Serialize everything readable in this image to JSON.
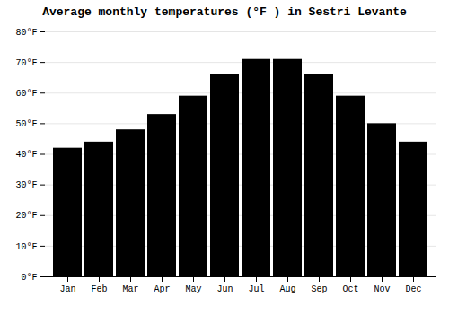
{
  "chart_data": {
    "type": "bar",
    "title": "Average monthly temperatures (°F ) in Sestri Levante",
    "categories": [
      "Jan",
      "Feb",
      "Mar",
      "Apr",
      "May",
      "Jun",
      "Jul",
      "Aug",
      "Sep",
      "Oct",
      "Nov",
      "Dec"
    ],
    "values": [
      42,
      44,
      48,
      53,
      59,
      66,
      71,
      71,
      66,
      59,
      50,
      44
    ],
    "ylim": [
      0,
      80
    ],
    "yticks": [
      {
        "value": 0,
        "label": "0°F"
      },
      {
        "value": 10,
        "label": "10°F"
      },
      {
        "value": 20,
        "label": "20°F"
      },
      {
        "value": 30,
        "label": "30°F"
      },
      {
        "value": 40,
        "label": "40°F"
      },
      {
        "value": 50,
        "label": "50°F"
      },
      {
        "value": 60,
        "label": "60°F"
      },
      {
        "value": 70,
        "label": "70°F"
      },
      {
        "value": 80,
        "label": "80°F"
      }
    ],
    "grid": true
  }
}
